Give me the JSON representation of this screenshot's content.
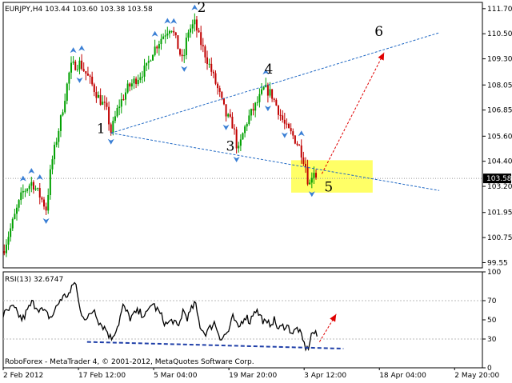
{
  "chart_data": [
    {
      "type": "candlestick",
      "symbol_header": "EURJPY,H4  103.44 103.60 103.38 103.58",
      "y_ticks": [
        "111.70",
        "110.50",
        "109.30",
        "108.05",
        "106.85",
        "105.60",
        "104.40",
        "103.20",
        "101.95",
        "100.75",
        "99.55"
      ],
      "y_tick_values": [
        111.7,
        110.5,
        109.3,
        108.05,
        106.85,
        105.6,
        104.4,
        103.2,
        101.95,
        100.75,
        99.55
      ],
      "ylim": [
        99.3,
        112.0
      ],
      "current_price_label": "103.58",
      "current_price": 103.58,
      "wave_labels": [
        {
          "text": "1",
          "x": 0.195,
          "price": 105.75
        },
        {
          "text": "2",
          "x": 0.405,
          "price": 111.55
        },
        {
          "text": "3",
          "x": 0.465,
          "price": 104.9
        },
        {
          "text": "4",
          "x": 0.545,
          "price": 108.6
        },
        {
          "text": "5",
          "x": 0.67,
          "price": 102.95
        },
        {
          "text": "6",
          "x": 0.775,
          "price": 110.4
        }
      ],
      "price_path": [
        [
          0.0,
          100.1
        ],
        [
          0.02,
          101.5
        ],
        [
          0.04,
          102.9
        ],
        [
          0.06,
          103.4
        ],
        [
          0.08,
          102.6
        ],
        [
          0.09,
          102.1
        ],
        [
          0.1,
          104.2
        ],
        [
          0.12,
          106.4
        ],
        [
          0.14,
          108.9
        ],
        [
          0.16,
          109.1
        ],
        [
          0.18,
          108.3
        ],
        [
          0.2,
          107.4
        ],
        [
          0.215,
          106.9
        ],
        [
          0.225,
          105.8
        ],
        [
          0.24,
          107.0
        ],
        [
          0.26,
          107.9
        ],
        [
          0.28,
          108.4
        ],
        [
          0.3,
          108.9
        ],
        [
          0.31,
          109.6
        ],
        [
          0.33,
          110.3
        ],
        [
          0.35,
          110.9
        ],
        [
          0.36,
          110.2
        ],
        [
          0.375,
          109.1
        ],
        [
          0.385,
          110.6
        ],
        [
          0.4,
          111.0
        ],
        [
          0.41,
          110.2
        ],
        [
          0.43,
          109.0
        ],
        [
          0.45,
          107.7
        ],
        [
          0.465,
          106.6
        ],
        [
          0.48,
          106.1
        ],
        [
          0.49,
          104.8
        ],
        [
          0.5,
          105.7
        ],
        [
          0.51,
          106.4
        ],
        [
          0.53,
          107.2
        ],
        [
          0.545,
          107.9
        ],
        [
          0.56,
          107.6
        ],
        [
          0.575,
          106.8
        ],
        [
          0.59,
          106.0
        ],
        [
          0.605,
          105.6
        ],
        [
          0.62,
          105.0
        ],
        [
          0.632,
          104.1
        ],
        [
          0.638,
          103.1
        ],
        [
          0.643,
          103.7
        ],
        [
          0.648,
          104.0
        ],
        [
          0.655,
          103.58
        ]
      ],
      "trendlines": [
        {
          "from": [
            0.225,
            105.75
          ],
          "to": [
            0.91,
            103.0
          ]
        },
        {
          "from": [
            0.225,
            105.75
          ],
          "to": [
            0.91,
            110.55
          ]
        }
      ],
      "forecast_arrow": {
        "from": [
          0.665,
          103.8
        ],
        "to": [
          0.795,
          109.6
        ]
      },
      "target_zone": {
        "x0": 0.601,
        "x1": 0.771,
        "y0": 104.45,
        "y1": 102.9
      },
      "colors": {
        "bull_candle": "#00a000",
        "bear_candle": "#c00000",
        "up_fractal": "#3a7fd5",
        "down_fractal": "#3a7fd5",
        "trendline": "#1f68c4",
        "forecast": "#e00000",
        "target_zone": "#ffff66",
        "price_line": "#999999"
      }
    },
    {
      "type": "line",
      "indicator_header": "RSI(13) 32.6747",
      "y_ticks": [
        "100",
        "70",
        "50",
        "30",
        "0"
      ],
      "y_tick_values": [
        100,
        70,
        50,
        30,
        0
      ],
      "ylim": [
        0,
        100
      ],
      "levels": [
        70,
        30
      ],
      "rsi_path": [
        [
          0.0,
          55
        ],
        [
          0.02,
          63
        ],
        [
          0.04,
          50
        ],
        [
          0.06,
          68
        ],
        [
          0.08,
          60
        ],
        [
          0.1,
          52
        ],
        [
          0.12,
          72
        ],
        [
          0.14,
          78
        ],
        [
          0.15,
          92
        ],
        [
          0.16,
          60
        ],
        [
          0.175,
          50
        ],
        [
          0.19,
          62
        ],
        [
          0.2,
          48
        ],
        [
          0.215,
          40
        ],
        [
          0.225,
          30
        ],
        [
          0.24,
          45
        ],
        [
          0.25,
          64
        ],
        [
          0.265,
          52
        ],
        [
          0.28,
          58
        ],
        [
          0.3,
          55
        ],
        [
          0.31,
          68
        ],
        [
          0.325,
          58
        ],
        [
          0.34,
          45
        ],
        [
          0.355,
          50
        ],
        [
          0.365,
          40
        ],
        [
          0.375,
          60
        ],
        [
          0.385,
          52
        ],
        [
          0.4,
          68
        ],
        [
          0.41,
          45
        ],
        [
          0.42,
          36
        ],
        [
          0.43,
          40
        ],
        [
          0.44,
          48
        ],
        [
          0.455,
          30
        ],
        [
          0.47,
          38
        ],
        [
          0.48,
          53
        ],
        [
          0.49,
          40
        ],
        [
          0.505,
          55
        ],
        [
          0.515,
          48
        ],
        [
          0.525,
          62
        ],
        [
          0.535,
          55
        ],
        [
          0.55,
          44
        ],
        [
          0.565,
          50
        ],
        [
          0.575,
          40
        ],
        [
          0.59,
          45
        ],
        [
          0.605,
          36
        ],
        [
          0.615,
          42
        ],
        [
          0.625,
          28
        ],
        [
          0.635,
          18
        ],
        [
          0.645,
          38
        ],
        [
          0.655,
          32.67
        ]
      ],
      "support_line": {
        "from": [
          0.175,
          27
        ],
        "to": [
          0.71,
          20
        ]
      },
      "forecast_arrow": {
        "from": [
          0.66,
          27
        ],
        "to": [
          0.695,
          56
        ]
      },
      "colors": {
        "rsi": "#000000",
        "levels": "#bbbbbb",
        "support": "#1f3fa8",
        "forecast": "#e00000"
      }
    }
  ],
  "x_ticks": [
    "2 Feb 2012",
    "17 Feb 12:00",
    "5 Mar 04:00",
    "19 Mar 20:00",
    "3 Apr 12:00",
    "18 Apr 04:00",
    "2 May 20:00"
  ],
  "x_tick_positions": [
    0.0,
    0.157,
    0.314,
    0.471,
    0.628,
    0.785,
    0.942
  ],
  "watermark": "RoboForex - MetaTrader 4, © 2001-2012, MetaQuotes Software Corp."
}
